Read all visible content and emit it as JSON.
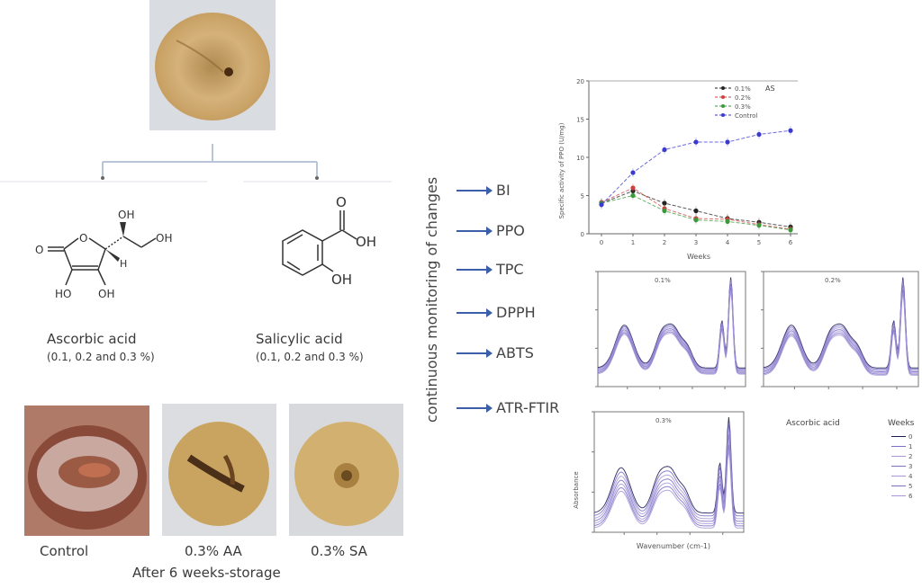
{
  "diagram": {
    "samples": {
      "ascorbic": {
        "name": "Ascorbic acid",
        "conc": "(0.1, 0.2 and 0.3 %)"
      },
      "salicylic": {
        "name": "Salicylic acid",
        "conc": "(0.1, 0.2 and 0.3 %)"
      }
    },
    "structure_labels": {
      "aa": {
        "o_keto": "O",
        "o_ring": "O",
        "oh1": "OH",
        "oh2": "OH",
        "ho": "HO",
        "oh3": "OH",
        "h": "H"
      },
      "sa": {
        "o": "O",
        "oh1": "OH",
        "oh2": "OH"
      }
    },
    "results": {
      "labels": [
        "Control",
        "0.3% AA",
        "0.3% SA"
      ],
      "caption": "After 6 weeks-storage"
    },
    "monitoring": {
      "title": "continuous monitoring of changes",
      "items": [
        "BI",
        "PPO",
        "TPC",
        "DPPH",
        "ABTS",
        "ATR-FTIR"
      ]
    },
    "colors": {
      "arrow": "#3a5ea8",
      "connector": "#b8c4d8"
    }
  },
  "chart_data": [
    {
      "type": "line",
      "title": "",
      "xlabel": "Weeks",
      "ylabel": "Specific activity of PPO (U/mg)",
      "x": [
        0,
        1,
        2,
        3,
        4,
        5,
        6
      ],
      "xticks": [
        "0",
        "1",
        "2",
        "3",
        "4",
        "5",
        "6"
      ],
      "yticks": [
        "0",
        "5",
        "10",
        "15",
        "20"
      ],
      "ylim": [
        0,
        20
      ],
      "legend_title": "AS",
      "legend_position": "top-right",
      "series": [
        {
          "name": "0.1%",
          "color": "#222222",
          "values": [
            4.0,
            5.6,
            4.0,
            3.0,
            2.0,
            1.5,
            0.9
          ]
        },
        {
          "name": "0.2%",
          "color": "#d04040",
          "values": [
            4.1,
            6.0,
            3.3,
            2.0,
            1.9,
            1.2,
            0.6
          ]
        },
        {
          "name": "0.3%",
          "color": "#3a9a3a",
          "values": [
            4.0,
            5.0,
            3.0,
            1.8,
            1.6,
            1.1,
            0.5
          ]
        },
        {
          "name": "Control",
          "color": "#3a3ad0",
          "values": [
            3.8,
            8.0,
            11.0,
            12.0,
            12.0,
            13.0,
            13.5
          ]
        }
      ]
    },
    {
      "type": "line",
      "title": "0.1%",
      "xlabel": "",
      "ylabel": "",
      "series_weeks": [
        "0",
        "1",
        "2",
        "3",
        "4",
        "5",
        "6"
      ]
    },
    {
      "type": "line",
      "title": "0.2%",
      "xlabel": "",
      "ylabel": "",
      "series_weeks": [
        "0",
        "1",
        "2",
        "3",
        "4",
        "5",
        "6"
      ]
    },
    {
      "type": "line",
      "title": "0.3%",
      "xlabel": "Wavenumber (cm-1)",
      "ylabel": "Absorbance",
      "series_weeks": [
        "0",
        "1",
        "2",
        "3",
        "4",
        "5",
        "6"
      ]
    }
  ],
  "ftir_legend": {
    "group": "Ascorbic acid",
    "title": "Weeks",
    "entries": [
      "0",
      "1",
      "2",
      "3",
      "4",
      "5",
      "6"
    ]
  }
}
